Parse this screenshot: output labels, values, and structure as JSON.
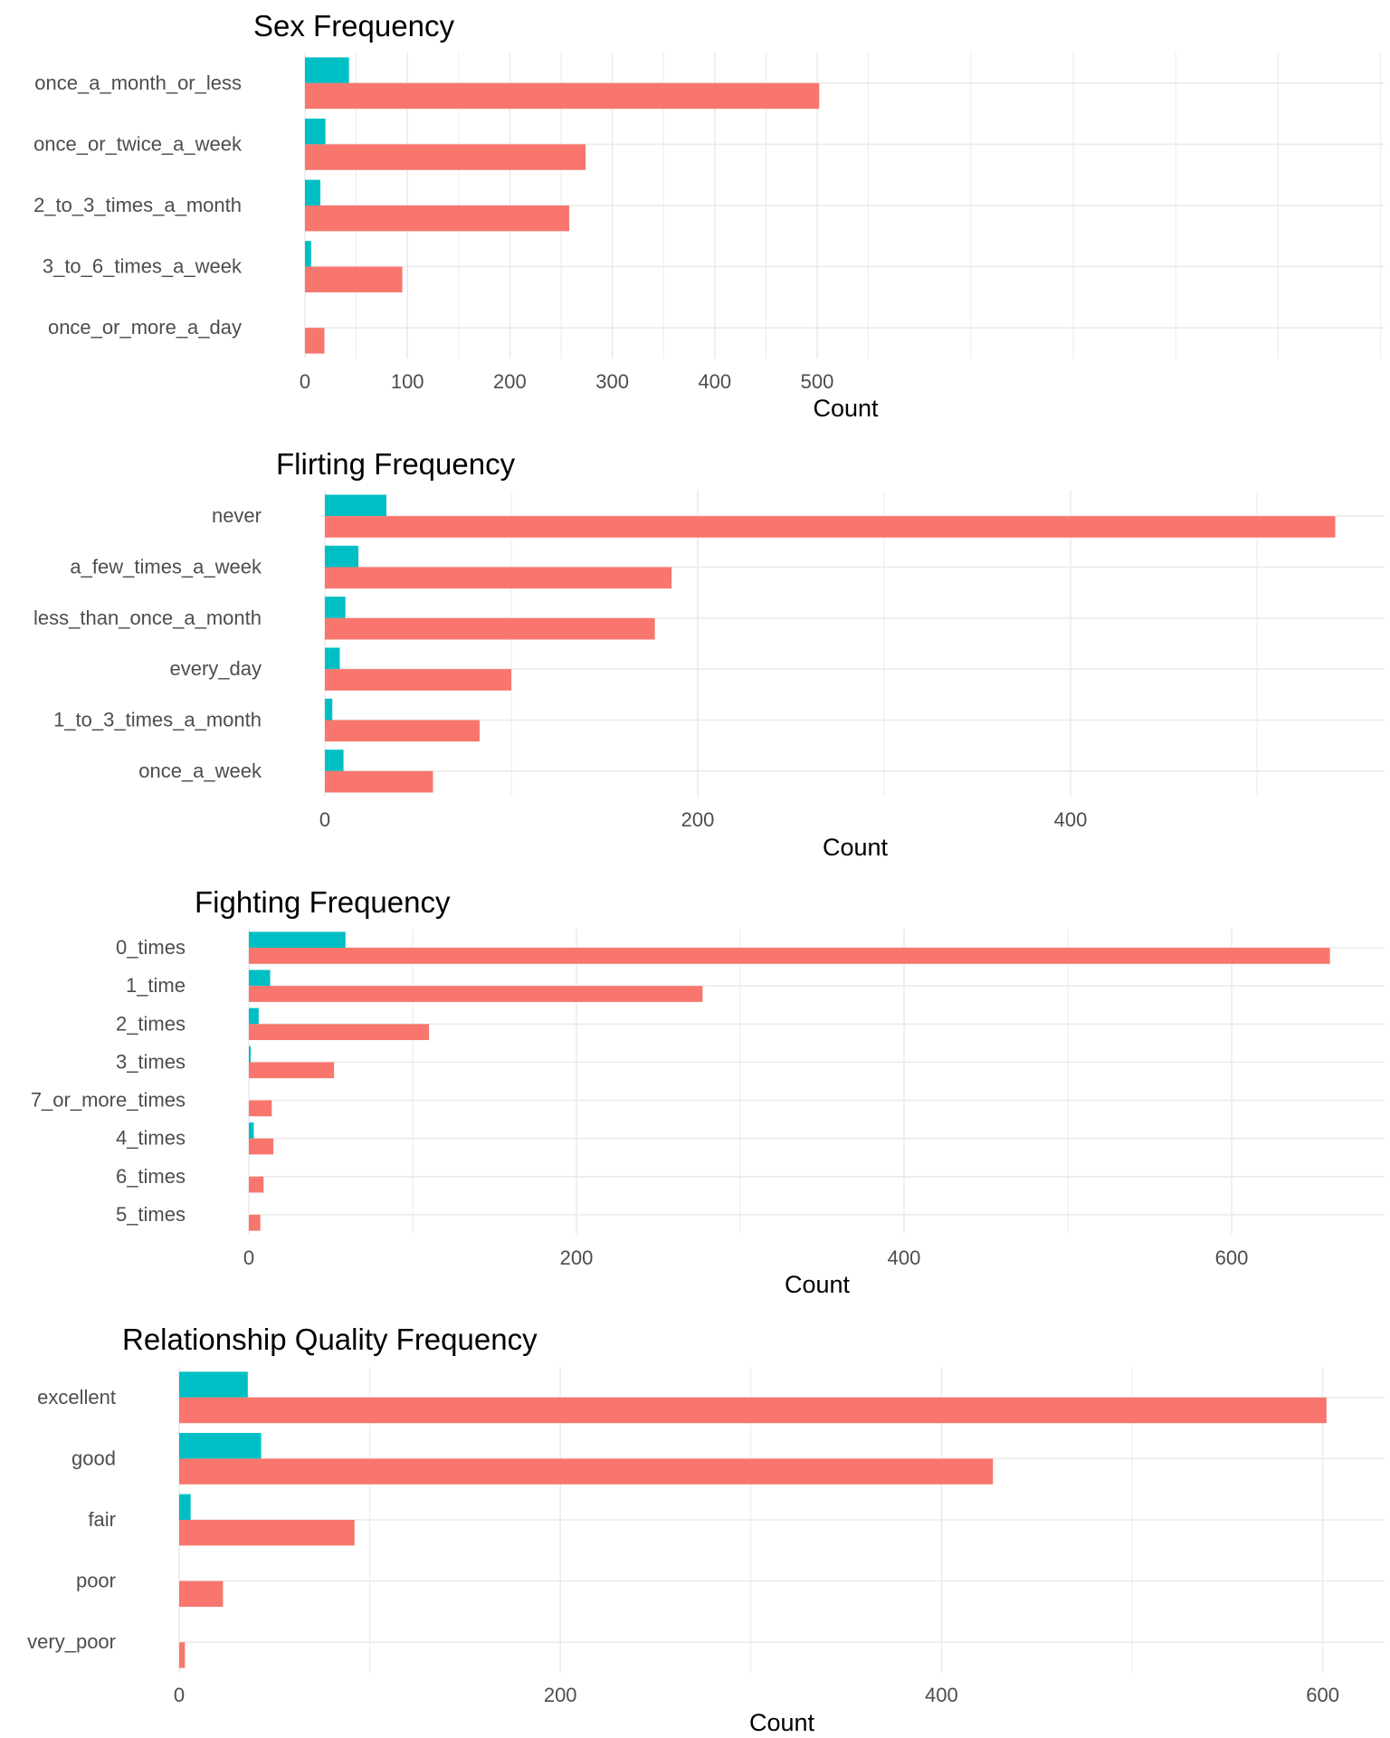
{
  "colors": {
    "series_a": "#F8766D",
    "series_b": "#00BFC4",
    "grid": "#EBEBEB",
    "text": "#4D4D4D",
    "title": "#000000"
  },
  "chart_data": [
    {
      "type": "bar",
      "orientation": "horizontal",
      "title": "Sex Frequency",
      "xlabel": "Count",
      "ylabel": "",
      "xlim": [
        0,
        530
      ],
      "xticks": [
        "0",
        "100",
        "200",
        "300",
        "400",
        "500"
      ],
      "grid": true,
      "legend": "none",
      "categories": [
        "once_a_month_or_less",
        "once_or_twice_a_week",
        "2_to_3_times_a_month",
        "3_to_6_times_a_week",
        "once_or_more_a_day"
      ],
      "series": [
        {
          "color": "#F8766D",
          "values": [
            502,
            274,
            258,
            95,
            19
          ]
        },
        {
          "color": "#00BFC4",
          "values": [
            43,
            20,
            15,
            6,
            0
          ]
        }
      ]
    },
    {
      "type": "bar",
      "orientation": "horizontal",
      "title": "Flirting Frequency",
      "xlabel": "Count",
      "ylabel": "",
      "xlim": [
        0,
        571
      ],
      "xticks": [
        "0",
        "200",
        "400"
      ],
      "grid": true,
      "legend": "none",
      "categories": [
        "never",
        "a_few_times_a_week",
        "less_than_once_a_month",
        "every_day",
        "1_to_3_times_a_month",
        "once_a_week"
      ],
      "series": [
        {
          "color": "#F8766D",
          "values": [
            542,
            186,
            177,
            100,
            83,
            58
          ]
        },
        {
          "color": "#00BFC4",
          "values": [
            33,
            18,
            11,
            8,
            4,
            10
          ]
        }
      ]
    },
    {
      "type": "bar",
      "orientation": "horizontal",
      "title": "Fighting Frequency",
      "xlabel": "Count",
      "ylabel": "",
      "xlim": [
        0,
        695
      ],
      "xticks": [
        "0",
        "200",
        "400",
        "600"
      ],
      "grid": true,
      "legend": "none",
      "categories": [
        "0_times",
        "1_time",
        "2_times",
        "3_times",
        "7_or_more_times",
        "4_times",
        "6_times",
        "5_times"
      ],
      "series": [
        {
          "color": "#F8766D",
          "values": [
            660,
            277,
            110,
            52,
            14,
            15,
            9,
            7
          ]
        },
        {
          "color": "#00BFC4",
          "values": [
            59,
            13,
            6,
            1,
            0,
            3,
            0,
            0
          ]
        }
      ]
    },
    {
      "type": "bar",
      "orientation": "horizontal",
      "title": "Relationship Quality Frequency",
      "xlabel": "Count",
      "ylabel": "",
      "xlim": [
        0,
        630
      ],
      "xticks": [
        "0",
        "200",
        "400",
        "600"
      ],
      "grid": true,
      "legend": "none",
      "categories": [
        "excellent",
        "good",
        "fair",
        "poor",
        "very_poor"
      ],
      "series": [
        {
          "color": "#F8766D",
          "values": [
            602,
            427,
            92,
            23,
            3
          ]
        },
        {
          "color": "#00BFC4",
          "values": [
            36,
            43,
            6,
            0,
            0
          ]
        }
      ]
    }
  ]
}
